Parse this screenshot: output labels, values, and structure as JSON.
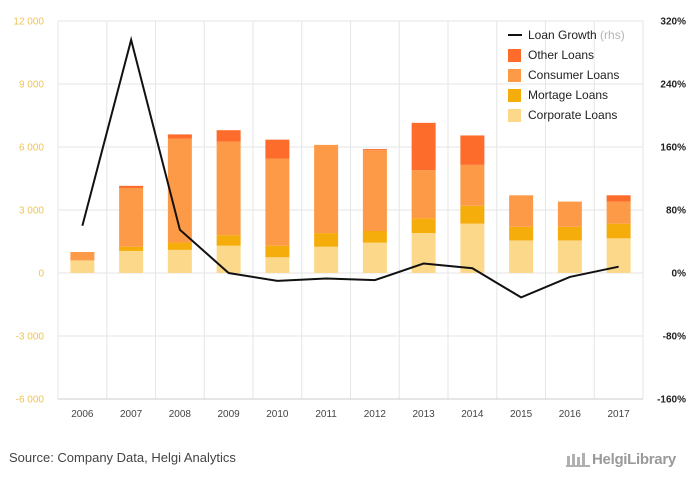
{
  "chart_data": {
    "type": "bar",
    "stacked": true,
    "categories": [
      "2006",
      "2007",
      "2008",
      "2009",
      "2010",
      "2011",
      "2012",
      "2013",
      "2014",
      "2015",
      "2016",
      "2017"
    ],
    "series": [
      {
        "name": "Corporate Loans",
        "color": "#fcd98a",
        "values": [
          600,
          1050,
          1100,
          1300,
          750,
          1250,
          1450,
          1900,
          2350,
          1550,
          1550,
          1650
        ]
      },
      {
        "name": "Mortage Loans",
        "color": "#f5ad0c",
        "values": [
          0,
          200,
          350,
          500,
          550,
          650,
          550,
          700,
          850,
          650,
          650,
          700
        ]
      },
      {
        "name": "Consumer Loans",
        "color": "#fd9a47",
        "values": [
          400,
          2800,
          4950,
          4450,
          4150,
          4200,
          3850,
          2300,
          1950,
          1500,
          1200,
          1050
        ]
      },
      {
        "name": "Other Loans",
        "color": "#fd6c2a",
        "values": [
          0,
          100,
          200,
          550,
          900,
          0,
          50,
          2250,
          1400,
          0,
          0,
          300
        ]
      }
    ],
    "line": {
      "name": "Loan Growth",
      "suffix": "(rhs)",
      "color": "#111111",
      "values": [
        60,
        296,
        55,
        0,
        -10,
        -7,
        -9,
        12,
        6,
        -31,
        -5,
        8
      ]
    },
    "y_left": {
      "min": -6000,
      "max": 12000,
      "ticks": [
        "-6 000",
        "-3 000",
        "0",
        "3 000",
        "6 000",
        "9 000",
        "12 000"
      ]
    },
    "y_right": {
      "min": -160,
      "max": 320,
      "ticks": [
        "-160%",
        "-80%",
        "0%",
        "80%",
        "160%",
        "240%",
        "320%"
      ]
    },
    "legend_position": "top-right",
    "grid": true
  },
  "footer": {
    "source": "Source: Company Data, Helgi Analytics",
    "brand": "HelgiLibrary"
  }
}
